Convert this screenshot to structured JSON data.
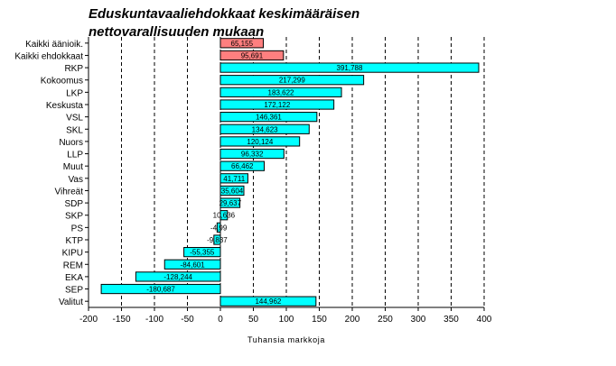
{
  "chart_data": {
    "type": "bar",
    "orientation": "horizontal",
    "title_lines": [
      "Eduskuntavaaliehdokkaat keskimääräisen",
      "nettovarallisuuden mukaan"
    ],
    "xlabel": "Tuhansia markkoja",
    "ylabel": "",
    "xlim": [
      -200,
      400
    ],
    "xticks": [
      -200,
      -150,
      -100,
      -50,
      0,
      50,
      100,
      150,
      200,
      250,
      300,
      350,
      400
    ],
    "grid": "vertical dashed",
    "legend": "none",
    "categories": [
      "Kaikki äänioik.",
      "Kaikki ehdokkaat",
      "RKP",
      "Kokoomus",
      "LKP",
      "Keskusta",
      "VSL",
      "SKL",
      "Nuors",
      "LLP",
      "Muut",
      "Vas",
      "Vihreät",
      "SDP",
      "SKP",
      "PS",
      "KTP",
      "KIPU",
      "REM",
      "EKA",
      "SEP",
      "Valitut"
    ],
    "values": [
      65.155,
      95.691,
      391.788,
      217.299,
      183.622,
      172.122,
      146.361,
      134.623,
      120.124,
      96.332,
      66.462,
      41.711,
      35.604,
      29.637,
      10.636,
      -4.99,
      -9.837,
      -55.355,
      -84.601,
      -128.244,
      -180.687,
      144.962
    ],
    "value_labels": [
      "65,155",
      "95,691",
      "391,788",
      "217,299",
      "183,622",
      "172,122",
      "146,361",
      "134,623",
      "120,124",
      "96,332",
      "66,462",
      "41,711",
      "35,604",
      "29,637",
      "10,636",
      "-4,99",
      "-9,837",
      "-55,355",
      "-84,601",
      "-128,244",
      "-180,687",
      "144,962"
    ],
    "colors": {
      "highlight": "#ff7f7f",
      "bar": "#00ffff",
      "edge": "#000000",
      "grid": "#000000"
    },
    "highlighted_categories": [
      "Kaikki äänioik.",
      "Kaikki ehdokkaat"
    ]
  }
}
